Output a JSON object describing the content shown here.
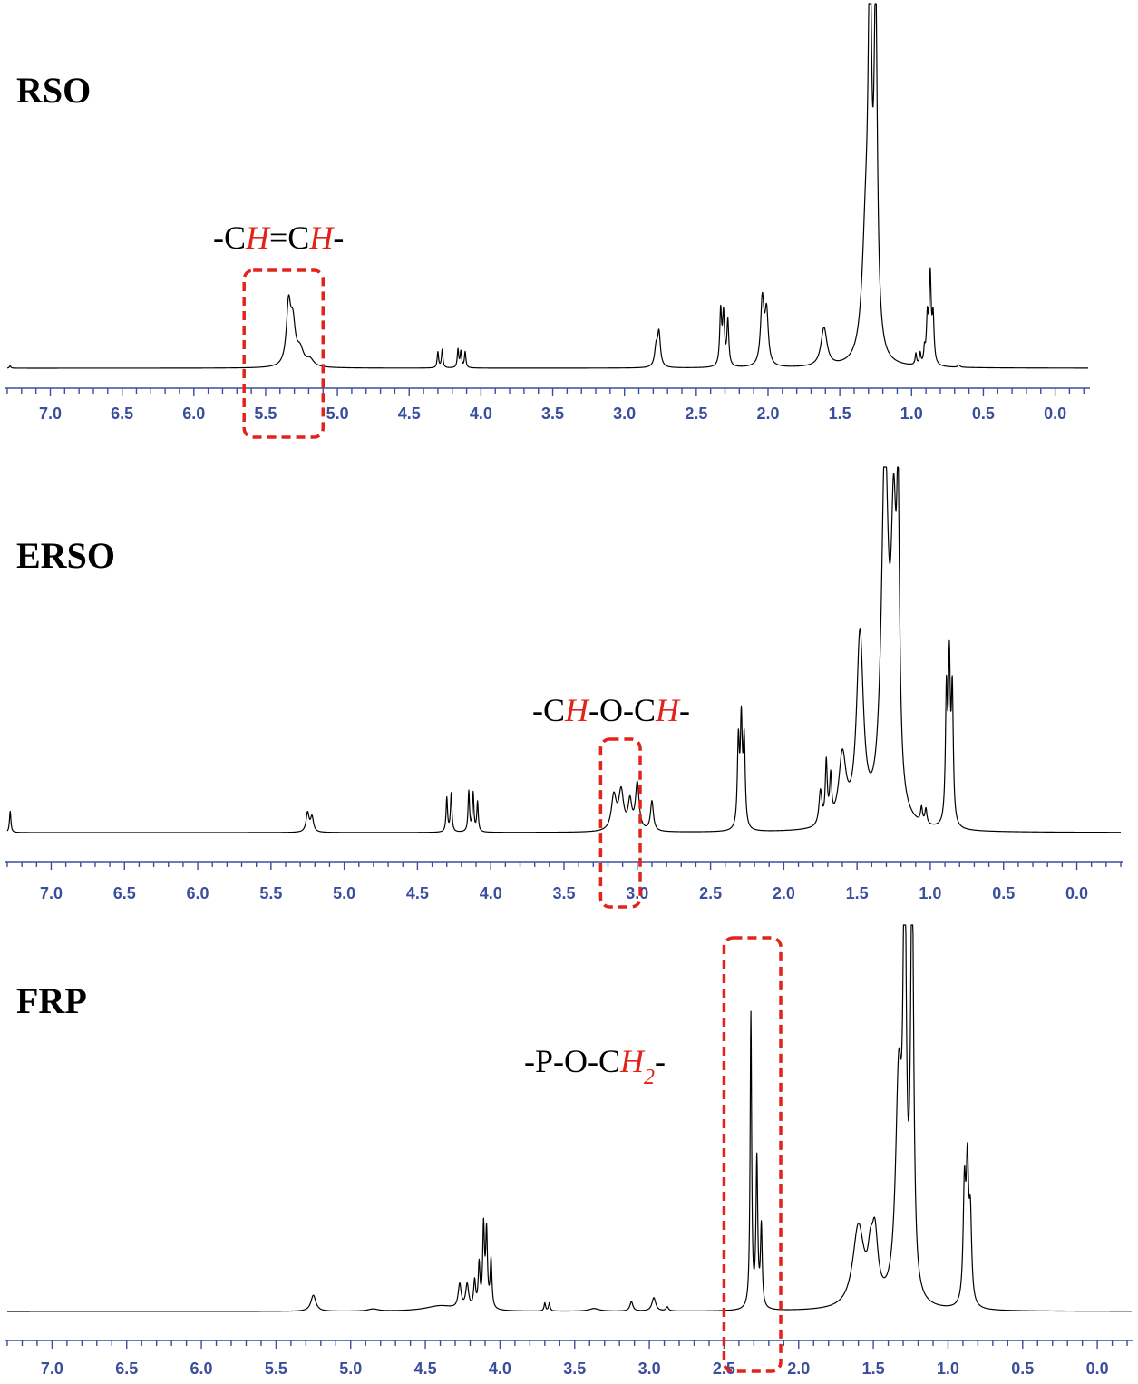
{
  "chart_data": [
    {
      "type": "line",
      "title": "RSO",
      "xlabel": "",
      "ylabel": "",
      "xlim": [
        7.3,
        -0.23
      ],
      "x_reversed": true,
      "ticks": [
        "7.0",
        "6.5",
        "6.0",
        "5.5",
        "5.0",
        "4.5",
        "4.0",
        "3.5",
        "3.0",
        "2.5",
        "2.0",
        "1.5",
        "1.0",
        "0.5",
        "0.0"
      ],
      "annotation": {
        "parts": [
          "-C",
          "H",
          "=C",
          "H",
          "-"
        ],
        "italic_red": [
          1,
          3
        ],
        "highlight_range": [
          5.65,
          5.1
        ]
      },
      "series": [
        {
          "peaks": [
            {
              "x": 7.28,
              "h": 0.01,
              "w": 0.006
            },
            {
              "x": 5.34,
              "h": 0.26,
              "w": 0.018
            },
            {
              "x": 5.31,
              "h": 0.17,
              "w": 0.02
            },
            {
              "x": 5.26,
              "h": 0.07,
              "w": 0.03
            },
            {
              "x": 5.19,
              "h": 0.03,
              "w": 0.03
            },
            {
              "x": 4.3,
              "h": 0.07,
              "w": 0.006
            },
            {
              "x": 4.27,
              "h": 0.08,
              "w": 0.006
            },
            {
              "x": 4.16,
              "h": 0.08,
              "w": 0.006
            },
            {
              "x": 4.14,
              "h": 0.07,
              "w": 0.006
            },
            {
              "x": 4.11,
              "h": 0.07,
              "w": 0.006
            },
            {
              "x": 2.76,
              "h": 0.15,
              "w": 0.012
            },
            {
              "x": 2.78,
              "h": 0.08,
              "w": 0.012
            },
            {
              "x": 2.33,
              "h": 0.24,
              "w": 0.008
            },
            {
              "x": 2.31,
              "h": 0.22,
              "w": 0.008
            },
            {
              "x": 2.28,
              "h": 0.2,
              "w": 0.008
            },
            {
              "x": 2.04,
              "h": 0.29,
              "w": 0.014
            },
            {
              "x": 2.01,
              "h": 0.23,
              "w": 0.014
            },
            {
              "x": 1.61,
              "h": 0.17,
              "w": 0.025
            },
            {
              "x": 1.32,
              "h": 0.5,
              "w": 0.03
            },
            {
              "x": 1.29,
              "h": 1.6,
              "w": 0.014
            },
            {
              "x": 1.25,
              "h": 1.5,
              "w": 0.014
            },
            {
              "x": 0.97,
              "h": 0.05,
              "w": 0.006
            },
            {
              "x": 0.94,
              "h": 0.05,
              "w": 0.006
            },
            {
              "x": 0.91,
              "h": 0.06,
              "w": 0.006
            },
            {
              "x": 0.89,
              "h": 0.2,
              "w": 0.008
            },
            {
              "x": 0.87,
              "h": 0.38,
              "w": 0.008
            },
            {
              "x": 0.85,
              "h": 0.2,
              "w": 0.008
            },
            {
              "x": 0.67,
              "h": 0.01,
              "w": 0.01
            }
          ]
        }
      ]
    },
    {
      "type": "line",
      "title": "ERSO",
      "xlabel": "",
      "ylabel": "",
      "xlim": [
        7.3,
        -0.3
      ],
      "x_reversed": true,
      "ticks": [
        "7.0",
        "6.5",
        "6.0",
        "5.5",
        "5.0",
        "4.5",
        "4.0",
        "3.5",
        "3.0",
        "2.5",
        "2.0",
        "1.5",
        "1.0",
        "0.5",
        "0.0"
      ],
      "annotation": {
        "parts": [
          "-C",
          "H",
          "-O-C",
          "H",
          "-"
        ],
        "italic_red": [
          1,
          3
        ],
        "highlight_range": [
          3.25,
          2.98
        ]
      },
      "series": [
        {
          "peaks": [
            {
              "x": 7.28,
              "h": 0.05,
              "w": 0.006
            },
            {
              "x": 5.25,
              "h": 0.045,
              "w": 0.012
            },
            {
              "x": 5.22,
              "h": 0.035,
              "w": 0.012
            },
            {
              "x": 4.3,
              "h": 0.08,
              "w": 0.006
            },
            {
              "x": 4.27,
              "h": 0.09,
              "w": 0.006
            },
            {
              "x": 4.15,
              "h": 0.095,
              "w": 0.006
            },
            {
              "x": 4.12,
              "h": 0.09,
              "w": 0.006
            },
            {
              "x": 4.09,
              "h": 0.07,
              "w": 0.006
            },
            {
              "x": 3.16,
              "h": 0.08,
              "w": 0.02
            },
            {
              "x": 3.11,
              "h": 0.09,
              "w": 0.02
            },
            {
              "x": 3.05,
              "h": 0.065,
              "w": 0.015
            },
            {
              "x": 3.0,
              "h": 0.11,
              "w": 0.015
            },
            {
              "x": 2.9,
              "h": 0.07,
              "w": 0.012
            },
            {
              "x": 2.31,
              "h": 0.2,
              "w": 0.008
            },
            {
              "x": 2.29,
              "h": 0.24,
              "w": 0.008
            },
            {
              "x": 2.27,
              "h": 0.2,
              "w": 0.008
            },
            {
              "x": 1.75,
              "h": 0.08,
              "w": 0.012
            },
            {
              "x": 1.71,
              "h": 0.14,
              "w": 0.008
            },
            {
              "x": 1.68,
              "h": 0.1,
              "w": 0.008
            },
            {
              "x": 1.6,
              "h": 0.16,
              "w": 0.03
            },
            {
              "x": 1.48,
              "h": 0.44,
              "w": 0.028
            },
            {
              "x": 1.31,
              "h": 0.85,
              "w": 0.028
            },
            {
              "x": 1.25,
              "h": 0.6,
              "w": 0.022
            },
            {
              "x": 1.22,
              "h": 0.6,
              "w": 0.012
            },
            {
              "x": 1.06,
              "h": 0.035,
              "w": 0.008
            },
            {
              "x": 1.03,
              "h": 0.035,
              "w": 0.008
            },
            {
              "x": 0.89,
              "h": 0.3,
              "w": 0.008
            },
            {
              "x": 0.87,
              "h": 0.36,
              "w": 0.008
            },
            {
              "x": 0.85,
              "h": 0.3,
              "w": 0.008
            }
          ]
        }
      ]
    },
    {
      "type": "line",
      "title": "FRP",
      "xlabel": "",
      "ylabel": "",
      "xlim": [
        7.3,
        -0.23
      ],
      "x_reversed": true,
      "ticks": [
        "7.0",
        "6.5",
        "6.0",
        "5.5",
        "5.0",
        "4.5",
        "4.0",
        "3.5",
        "3.0",
        "2.5",
        "2.0",
        "1.5",
        "1.0",
        "0.5",
        "0.0"
      ],
      "annotation": {
        "parts": [
          "-P-O-C",
          "H",
          "2",
          "-"
        ],
        "italic_red": [
          1,
          2
        ],
        "subscript": [
          2
        ],
        "highlight_range": [
          2.5,
          2.12
        ]
      },
      "series": [
        {
          "peaks": [
            {
              "x": 5.25,
              "h": 0.06,
              "w": 0.02
            },
            {
              "x": 4.85,
              "h": 0.008,
              "w": 0.04
            },
            {
              "x": 4.4,
              "h": 0.02,
              "w": 0.12
            },
            {
              "x": 4.27,
              "h": 0.09,
              "w": 0.012
            },
            {
              "x": 4.22,
              "h": 0.09,
              "w": 0.012
            },
            {
              "x": 4.17,
              "h": 0.1,
              "w": 0.008
            },
            {
              "x": 4.14,
              "h": 0.16,
              "w": 0.007
            },
            {
              "x": 4.11,
              "h": 0.3,
              "w": 0.007
            },
            {
              "x": 4.09,
              "h": 0.28,
              "w": 0.007
            },
            {
              "x": 4.06,
              "h": 0.18,
              "w": 0.007
            },
            {
              "x": 3.7,
              "h": 0.03,
              "w": 0.006
            },
            {
              "x": 3.67,
              "h": 0.03,
              "w": 0.006
            },
            {
              "x": 3.37,
              "h": 0.01,
              "w": 0.04
            },
            {
              "x": 3.12,
              "h": 0.035,
              "w": 0.012
            },
            {
              "x": 2.97,
              "h": 0.05,
              "w": 0.015
            },
            {
              "x": 2.88,
              "h": 0.015,
              "w": 0.01
            },
            {
              "x": 2.32,
              "h": 1.1,
              "w": 0.006
            },
            {
              "x": 2.28,
              "h": 0.55,
              "w": 0.007
            },
            {
              "x": 2.25,
              "h": 0.3,
              "w": 0.007
            },
            {
              "x": 1.6,
              "h": 0.3,
              "w": 0.045
            },
            {
              "x": 1.52,
              "h": 0.12,
              "w": 0.02
            },
            {
              "x": 1.49,
              "h": 0.24,
              "w": 0.025
            },
            {
              "x": 1.33,
              "h": 0.8,
              "w": 0.025
            },
            {
              "x": 1.29,
              "h": 1.6,
              "w": 0.012
            },
            {
              "x": 1.24,
              "h": 1.6,
              "w": 0.012
            },
            {
              "x": 0.89,
              "h": 0.42,
              "w": 0.01
            },
            {
              "x": 0.87,
              "h": 0.48,
              "w": 0.01
            },
            {
              "x": 0.85,
              "h": 0.3,
              "w": 0.01
            }
          ]
        }
      ]
    }
  ]
}
